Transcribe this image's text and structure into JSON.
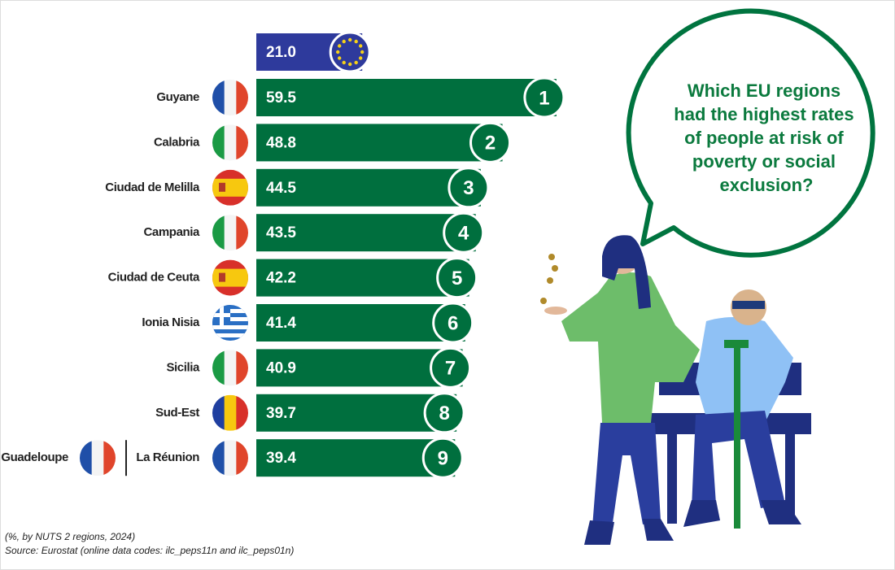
{
  "chart_data": {
    "type": "bar",
    "title_lines": [
      "Which EU regions",
      "had the highest rates",
      "of people at risk of",
      "poverty or social",
      "exclusion?"
    ],
    "categories": [
      "Guyane",
      "Calabria",
      "Ciudad de Melilla",
      "Campania",
      "Ciudad de Ceuta",
      "Ionia Nisia",
      "Sicilia",
      "Sud-Est",
      "La Réunion"
    ],
    "tied_with_last": "Guadeloupe",
    "values": [
      59.5,
      48.8,
      44.5,
      43.5,
      42.2,
      41.4,
      40.9,
      39.7,
      39.4
    ],
    "value_labels": [
      "59.5",
      "48.8",
      "44.5",
      "43.5",
      "42.2",
      "41.4",
      "40.9",
      "39.7",
      "39.4"
    ],
    "ranks": [
      1,
      2,
      3,
      4,
      5,
      6,
      7,
      8,
      9
    ],
    "color": "#006f3e",
    "eu_value": 21.0,
    "eu_value_label": "21.0",
    "eu_color": "#2e3a9c",
    "note": "(%, by NUTS 2 regions, 2024)",
    "source": "Source: Eurostat (online data codes: ilc_peps11n and ilc_peps01n)"
  }
}
